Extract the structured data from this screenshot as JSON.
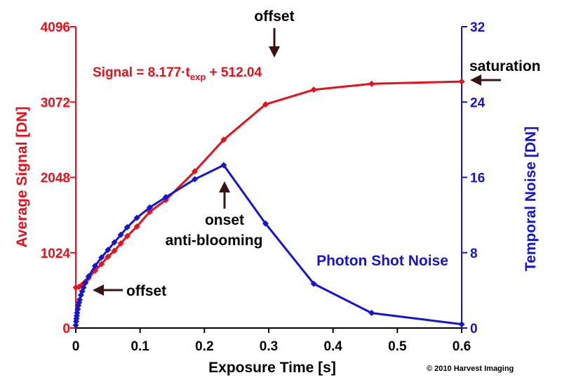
{
  "chart_data": {
    "type": "line",
    "xlabel": "Exposure Time [s]",
    "ylabel_left": "Average Signal [DN]",
    "ylabel_right": "Temporal Noise [DN]",
    "xlim": [
      0,
      0.6
    ],
    "ylim_left": [
      0,
      4096
    ],
    "ylim_right": [
      0,
      32
    ],
    "x_ticks": [
      "0",
      "0.1",
      "0.2",
      "0.3",
      "0.4",
      "0.5",
      "0.6"
    ],
    "y_ticks_left": [
      "0",
      "1024",
      "2048",
      "3072",
      "4096"
    ],
    "y_ticks_right": [
      "0",
      "8",
      "16",
      "24",
      "32"
    ],
    "grid": false,
    "series": [
      {
        "axis": "left",
        "color": "#e8101a",
        "marker": "diamond",
        "x": [
          0,
          0.005,
          0.01,
          0.015,
          0.02,
          0.03,
          0.04,
          0.05,
          0.06,
          0.07,
          0.08,
          0.095,
          0.115,
          0.14,
          0.185,
          0.23,
          0.295,
          0.37,
          0.46,
          0.6
        ],
        "y": [
          550,
          560,
          590,
          630,
          680,
          780,
          870,
          970,
          1050,
          1150,
          1250,
          1380,
          1580,
          1740,
          2130,
          2560,
          3040,
          3240,
          3320,
          3350
        ]
      },
      {
        "axis": "right",
        "name": "Photon Shot Noise",
        "color": "#1414d2",
        "marker": "diamond",
        "x": [
          0,
          0.0005,
          0.001,
          0.0015,
          0.002,
          0.003,
          0.004,
          0.005,
          0.006,
          0.008,
          0.01,
          0.012,
          0.015,
          0.02,
          0.03,
          0.04,
          0.05,
          0.06,
          0.07,
          0.08,
          0.095,
          0.115,
          0.14,
          0.185,
          0.23,
          0.295,
          0.37,
          0.46,
          0.6
        ],
        "y": [
          0.3,
          0.7,
          1.0,
          1.3,
          1.6,
          2.0,
          2.4,
          2.7,
          3.0,
          3.5,
          3.9,
          4.3,
          4.8,
          5.5,
          6.6,
          7.5,
          8.3,
          9.1,
          9.9,
          10.7,
          11.7,
          12.8,
          13.9,
          15.8,
          17.3,
          11.1,
          4.7,
          1.6,
          0.4
        ]
      }
    ],
    "annotations": {
      "equation_prefix": "Signal = 8.177·t",
      "equation_sub": "exp",
      "equation_suffix": " + 512.04",
      "offset_top": "offset",
      "saturation": "saturation",
      "onset_line1": "onset",
      "onset_line2": "anti-blooming",
      "offset_left": "offset",
      "copyright": "© 2010 Harvest Imaging"
    }
  },
  "colors": {
    "signal": "#e8101a",
    "noise": "#1414d2",
    "arrow": "#3a1414",
    "text": "#000000"
  }
}
